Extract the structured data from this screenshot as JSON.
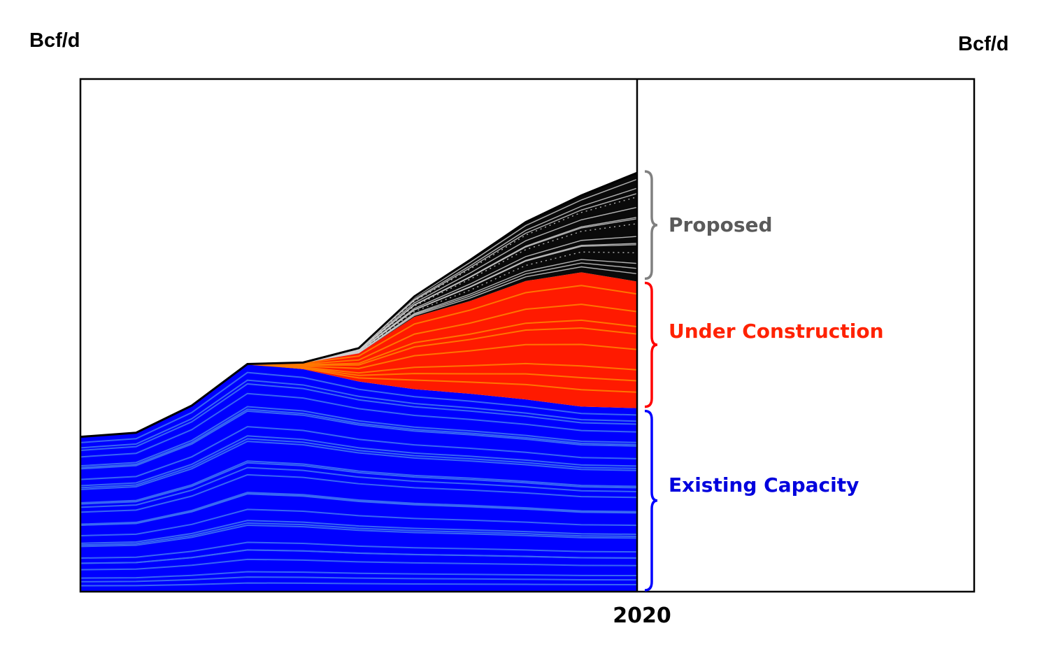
{
  "units": {
    "left": "Bcf/d",
    "right": "Bcf/d"
  },
  "chart_data": {
    "type": "area",
    "stacked": true,
    "x_tick_label": "2020",
    "x": [
      0,
      1,
      2,
      3,
      4,
      5,
      6,
      7,
      8,
      9,
      10
    ],
    "series": [
      {
        "name": "Existing Capacity",
        "color": "#0000ff",
        "line_color": "#3a6bf2",
        "values": [
          0.302,
          0.31,
          0.363,
          0.444,
          0.434,
          0.41,
          0.395,
          0.386,
          0.375,
          0.361,
          0.358
        ]
      },
      {
        "name": "Under Construction",
        "color": "#ff1a00",
        "line_color": "#ff7a00",
        "values": [
          0.0,
          0.0,
          0.0,
          0.0,
          0.013,
          0.055,
          0.141,
          0.181,
          0.231,
          0.262,
          0.247
        ]
      },
      {
        "name": "Proposed",
        "color": "#0a0a0a",
        "line_color": "#d0d0d0",
        "values": [
          0.0,
          0.0,
          0.0,
          0.0,
          0.0,
          0.01,
          0.04,
          0.08,
          0.115,
          0.15,
          0.212
        ]
      }
    ],
    "grid": false,
    "legend": "right-side braces"
  },
  "labels": {
    "proposed": "Proposed",
    "under_construction": "Under Construction",
    "existing": "Existing Capacity"
  },
  "colors": {
    "proposed": "#5a5a5a",
    "under_construction": "#ff2200",
    "existing": "#0000dd",
    "brace_proposed": "#808080",
    "brace_under_construction": "#ff0000",
    "brace_existing": "#0000ff"
  }
}
